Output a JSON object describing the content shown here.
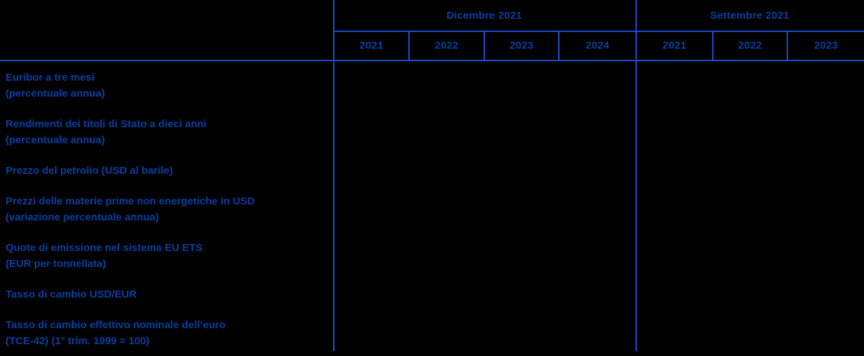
{
  "table": {
    "column_groups": [
      {
        "label": "Dicembre 2021",
        "years": [
          "2021",
          "2022",
          "2023",
          "2024"
        ]
      },
      {
        "label": "Settembre 2021",
        "years": [
          "2021",
          "2022",
          "2023"
        ]
      }
    ],
    "rows": [
      {
        "lines": [
          "Euribor a tre mesi",
          "(percentuale annua)"
        ]
      },
      {
        "lines": [
          "Rendimenti dei titoli di Stato a dieci anni",
          "(percentuale annua)"
        ]
      },
      {
        "lines": [
          "Prezzo del petrolio (USD al barile)"
        ]
      },
      {
        "lines": [
          "Prezzi delle materie prime non energetiche in USD",
          "(variazione percentuale annua)"
        ]
      },
      {
        "lines": [
          "Quote di emissione nel sistema EU ETS",
          "(EUR per tonnellata)"
        ]
      },
      {
        "lines": [
          "Tasso di cambio USD/EUR"
        ]
      },
      {
        "lines": [
          "Tasso di cambio effettivo nominale dell’euro",
          "(TCE-42) (1° trim. 1999 = 100)"
        ]
      }
    ]
  },
  "colors": {
    "background": "#000000",
    "text": "#0b3e9e",
    "grid_lines": "#1c4cd2"
  }
}
